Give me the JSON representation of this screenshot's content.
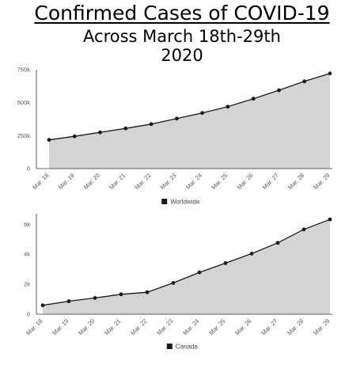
{
  "title": {
    "line1": "Confirmed Cases of COVID-19",
    "line2": "Across March 18th-29th",
    "line3": "2020"
  },
  "colors": {
    "area_fill": "#d4d4d4",
    "line": "#1a1a1a",
    "axis": "#333333"
  },
  "chart_data": [
    {
      "type": "area",
      "categories": [
        "Mar. 18",
        "Mar. 19",
        "Mar. 20",
        "Mar. 21",
        "Mar. 22",
        "Mar. 23",
        "Mar. 24",
        "Mar. 25",
        "Mar. 26",
        "Mar. 27",
        "Mar. 28",
        "Mar. 29"
      ],
      "series": [
        {
          "name": "Worldwide",
          "values": [
            218000,
            245000,
            275000,
            305000,
            337000,
            379000,
            422000,
            469000,
            530000,
            594000,
            661000,
            721000
          ]
        }
      ],
      "ylim": [
        0,
        750000
      ],
      "yticks": [
        0,
        250000,
        500000,
        750000
      ],
      "ytick_labels": [
        "0",
        "250k",
        "500k",
        "750k"
      ],
      "legend": "bottom-center",
      "grid": false
    },
    {
      "type": "area",
      "categories": [
        "Mar. 18",
        "Mar. 19",
        "Mar. 20",
        "Mar. 21",
        "Mar. 22",
        "Mar. 23",
        "Mar. 24",
        "Mar. 25",
        "Mar. 26",
        "Mar. 27",
        "Mar. 28",
        "Mar. 29"
      ],
      "series": [
        {
          "name": "Canada",
          "values": [
            598,
            873,
            1087,
            1331,
            1469,
            2088,
            2790,
            3409,
            4043,
            4757,
            5655,
            6320
          ]
        }
      ],
      "ylim": [
        0,
        6700
      ],
      "yticks": [
        0,
        2000,
        4000,
        6000
      ],
      "ytick_labels": [
        "0",
        "2k",
        "4k",
        "6k"
      ],
      "legend": "bottom-center",
      "grid": false
    }
  ]
}
